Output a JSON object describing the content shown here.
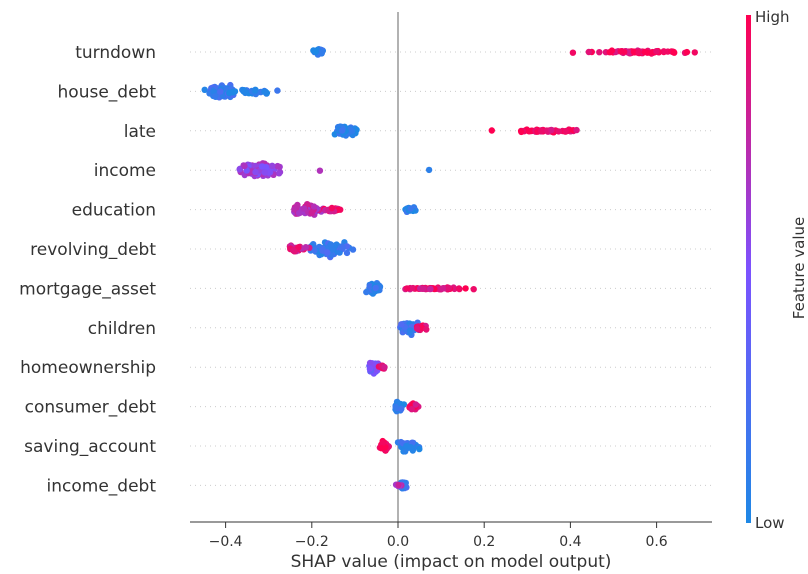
{
  "chart_data": {
    "type": "scatter",
    "subtype": "shap-beeswarm",
    "xlabel": "SHAP value (impact on model output)",
    "ylabel": "",
    "xlim": [
      -0.485,
      0.725
    ],
    "xticks": [
      -0.4,
      -0.2,
      0.0,
      0.2,
      0.4,
      0.6
    ],
    "xtick_labels": [
      "−0.4",
      "−0.2",
      "0.0",
      "0.2",
      "0.4",
      "0.6"
    ],
    "grid": false,
    "zero_line": true,
    "colorbar": {
      "label": "Feature value",
      "high_label": "High",
      "low_label": "Low",
      "low_color": "#1e88e5",
      "high_color": "#ff0051"
    },
    "features": [
      {
        "name": "turndown",
        "groups": [
          {
            "center": -0.185,
            "spread": 0.01,
            "count": 40,
            "color": 0.05,
            "width": 0.5
          },
          {
            "center": 0.565,
            "spread": 0.1,
            "count": 70,
            "color": 0.95,
            "width": 0.25
          }
        ]
      },
      {
        "name": "house_debt",
        "groups": [
          {
            "center": -0.405,
            "spread": 0.03,
            "count": 110,
            "color": 0.15,
            "width": 1.0
          },
          {
            "center": -0.33,
            "spread": 0.06,
            "count": 30,
            "color": 0.05,
            "width": 0.4
          }
        ]
      },
      {
        "name": "late",
        "groups": [
          {
            "center": -0.125,
            "spread": 0.025,
            "count": 70,
            "color": 0.05,
            "width": 0.7
          },
          {
            "center": 0.35,
            "spread": 0.07,
            "count": 55,
            "color": 0.95,
            "width": 0.25
          },
          {
            "center": 0.22,
            "spread": 0.005,
            "count": 1,
            "color": 0.95,
            "width": 0.1
          }
        ]
      },
      {
        "name": "income",
        "groups": [
          {
            "center": -0.32,
            "spread": 0.045,
            "count": 110,
            "color": 0.6,
            "width": 1.0
          },
          {
            "center": -0.18,
            "spread": 0.005,
            "count": 1,
            "color": 0.8,
            "width": 0.1
          },
          {
            "center": 0.075,
            "spread": 0.005,
            "count": 1,
            "color": 0.05,
            "width": 0.1
          }
        ]
      },
      {
        "name": "education",
        "groups": [
          {
            "center": -0.21,
            "spread": 0.03,
            "count": 80,
            "color": 0.75,
            "width": 0.8
          },
          {
            "center": -0.15,
            "spread": 0.02,
            "count": 20,
            "color": 0.9,
            "width": 0.3
          },
          {
            "center": 0.03,
            "spread": 0.012,
            "count": 20,
            "color": 0.05,
            "width": 0.5
          }
        ]
      },
      {
        "name": "revolving_debt",
        "groups": [
          {
            "center": -0.16,
            "spread": 0.04,
            "count": 110,
            "color": 0.15,
            "width": 1.0
          },
          {
            "center": -0.23,
            "spread": 0.02,
            "count": 25,
            "color": 0.85,
            "width": 0.5
          }
        ]
      },
      {
        "name": "mortgage_asset",
        "groups": [
          {
            "center": -0.055,
            "spread": 0.015,
            "count": 60,
            "color": 0.1,
            "width": 0.8
          },
          {
            "center": 0.08,
            "spread": 0.07,
            "count": 55,
            "color": 0.9,
            "width": 0.2
          }
        ]
      },
      {
        "name": "children",
        "groups": [
          {
            "center": 0.025,
            "spread": 0.02,
            "count": 80,
            "color": 0.15,
            "width": 0.85
          },
          {
            "center": 0.055,
            "spread": 0.012,
            "count": 20,
            "color": 0.95,
            "width": 0.4
          }
        ]
      },
      {
        "name": "homeownership",
        "groups": [
          {
            "center": -0.055,
            "spread": 0.012,
            "count": 55,
            "color": 0.45,
            "width": 0.8
          },
          {
            "center": -0.035,
            "spread": 0.008,
            "count": 10,
            "color": 0.9,
            "width": 0.3
          }
        ]
      },
      {
        "name": "consumer_debt",
        "groups": [
          {
            "center": 0.0,
            "spread": 0.01,
            "count": 40,
            "color": 0.1,
            "width": 0.8
          },
          {
            "center": 0.035,
            "spread": 0.012,
            "count": 30,
            "color": 0.9,
            "width": 0.5
          }
        ]
      },
      {
        "name": "saving_account",
        "groups": [
          {
            "center": -0.03,
            "spread": 0.01,
            "count": 40,
            "color": 0.95,
            "width": 0.8
          },
          {
            "center": 0.025,
            "spread": 0.02,
            "count": 40,
            "color": 0.1,
            "width": 0.8
          }
        ]
      },
      {
        "name": "income_debt",
        "groups": [
          {
            "center": 0.012,
            "spread": 0.008,
            "count": 50,
            "color": 0.15,
            "width": 0.6
          },
          {
            "center": 0.0,
            "spread": 0.01,
            "count": 10,
            "color": 0.7,
            "width": 0.3
          }
        ]
      }
    ]
  }
}
